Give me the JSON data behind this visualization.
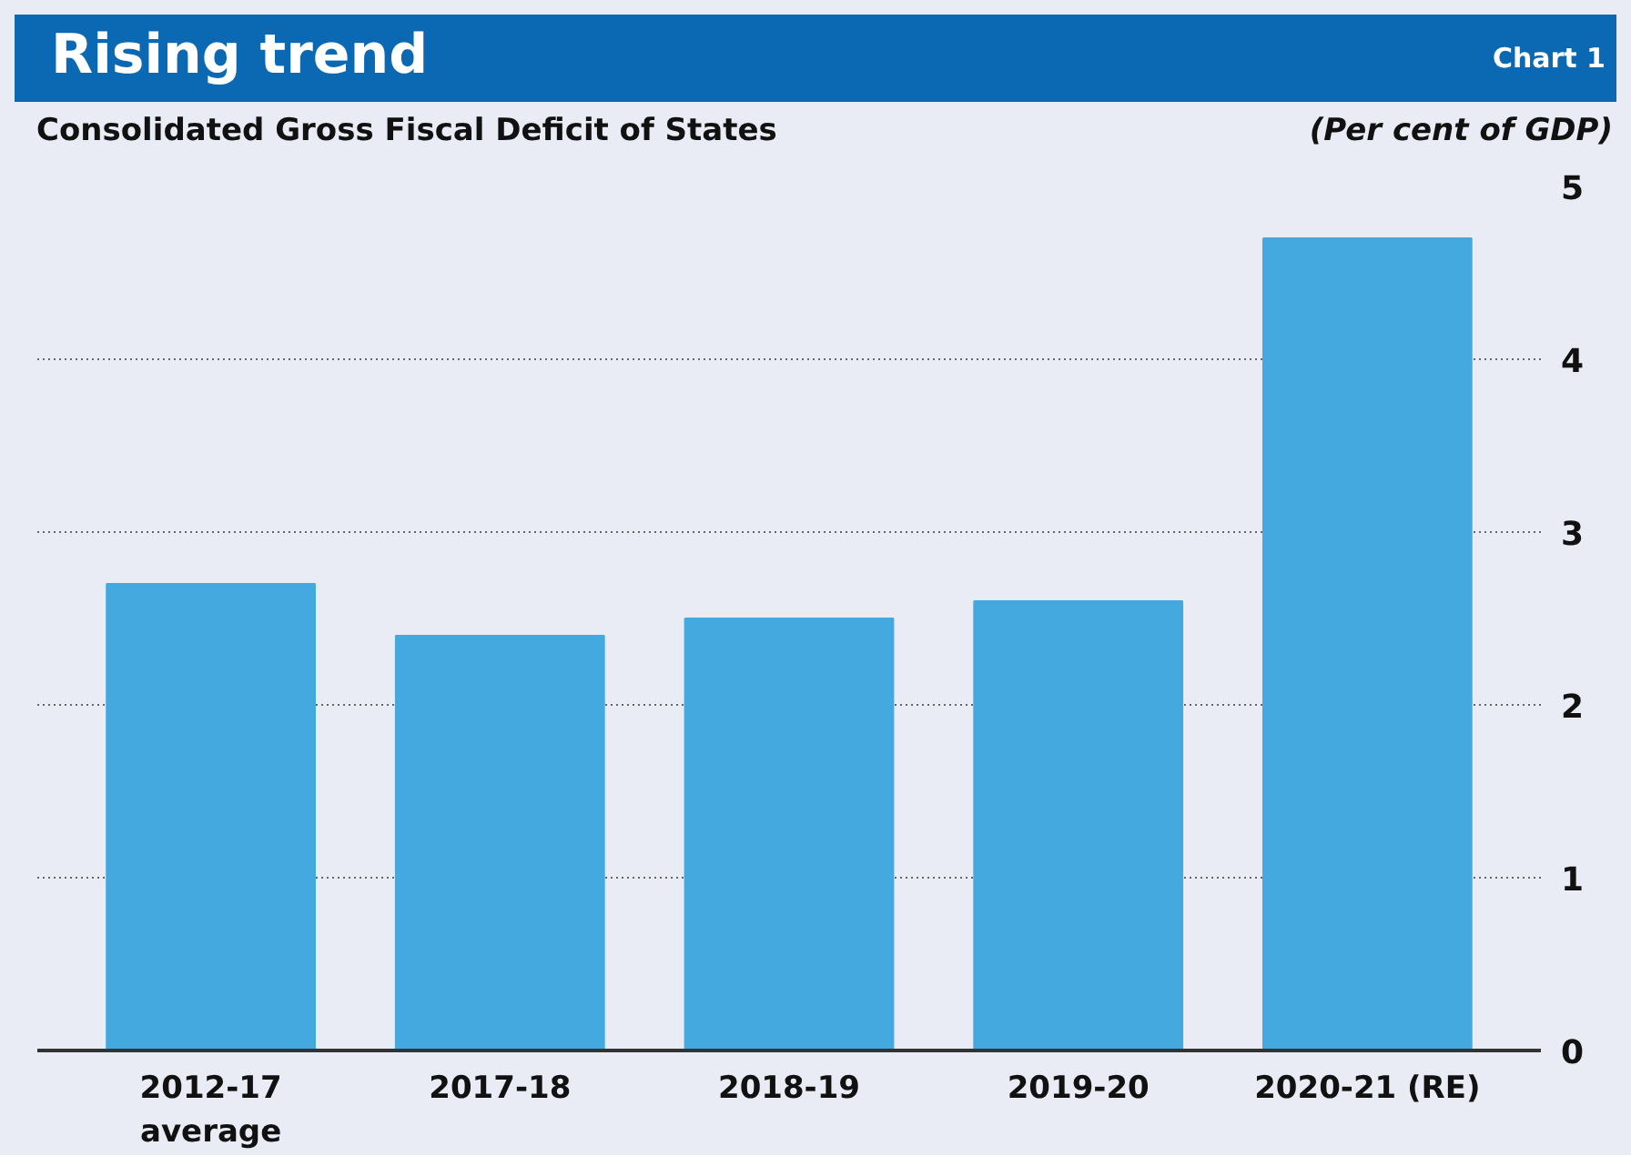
{
  "chart_data": {
    "type": "bar",
    "title": "Rising trend",
    "subtitle": "Consolidated Gross Fiscal Deficit of States",
    "ylabel": "(Per cent of GDP)",
    "annotations": [
      "Chart 1"
    ],
    "categories": [
      "2012-17\naverage",
      "2017-18",
      "2018-19",
      "2019-20",
      "2020-21 (RE)"
    ],
    "values": [
      2.7,
      2.4,
      2.5,
      2.6,
      4.7
    ],
    "color": "#43a9de",
    "ylim": [
      0,
      5
    ],
    "yticks": [
      0,
      1,
      2,
      3,
      4,
      5
    ],
    "grid": "y"
  }
}
